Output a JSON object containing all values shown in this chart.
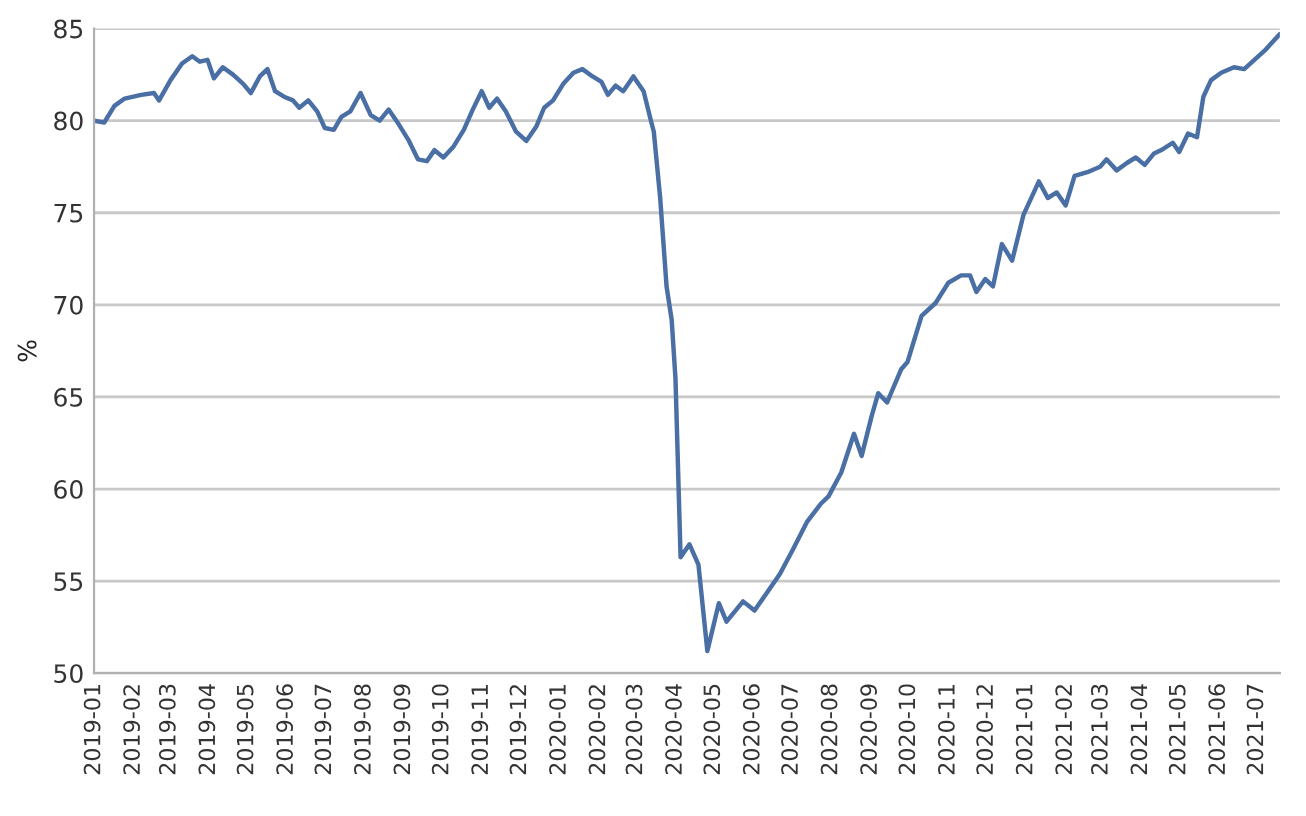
{
  "chart_data": {
    "type": "line",
    "ylabel": "%",
    "xlim": [
      "2019-01-01",
      "2021-07-19"
    ],
    "ylim": [
      50,
      85
    ],
    "yticks": [
      50,
      55,
      60,
      65,
      70,
      75,
      80,
      85
    ],
    "xticks": [
      "2019-01",
      "2019-02",
      "2019-03",
      "2019-04",
      "2019-05",
      "2019-06",
      "2019-07",
      "2019-08",
      "2019-09",
      "2019-10",
      "2019-11",
      "2019-12",
      "2020-01",
      "2020-02",
      "2020-03",
      "2020-04",
      "2020-05",
      "2020-06",
      "2020-07",
      "2020-08",
      "2020-09",
      "2020-10",
      "2020-11",
      "2020-12",
      "2021-01",
      "2021-02",
      "2021-03",
      "2021-04",
      "2021-05",
      "2021-06",
      "2021-07"
    ],
    "grid": "y",
    "marker": "none",
    "line_style": "solid",
    "series": [
      {
        "color": "#4a6fa5",
        "x": [
          "2019-01-01",
          "2019-01-09",
          "2019-01-17",
          "2019-01-25",
          "2019-02-07",
          "2019-02-17",
          "2019-02-21",
          "2019-03-02",
          "2019-03-11",
          "2019-03-19",
          "2019-03-25",
          "2019-03-31",
          "2019-04-05",
          "2019-04-12",
          "2019-04-20",
          "2019-04-28",
          "2019-05-04",
          "2019-05-11",
          "2019-05-17",
          "2019-05-23",
          "2019-05-30",
          "2019-06-06",
          "2019-06-11",
          "2019-06-18",
          "2019-06-25",
          "2019-07-01",
          "2019-07-08",
          "2019-07-14",
          "2019-07-21",
          "2019-07-29",
          "2019-08-06",
          "2019-08-13",
          "2019-08-20",
          "2019-08-28",
          "2019-09-05",
          "2019-09-12",
          "2019-09-19",
          "2019-09-25",
          "2019-10-02",
          "2019-10-10",
          "2019-10-18",
          "2019-10-25",
          "2019-11-01",
          "2019-11-07",
          "2019-11-13",
          "2019-11-20",
          "2019-11-28",
          "2019-12-06",
          "2019-12-14",
          "2019-12-20",
          "2019-12-27",
          "2020-01-04",
          "2020-01-12",
          "2020-01-19",
          "2020-01-27",
          "2020-02-03",
          "2020-02-08",
          "2020-02-14",
          "2020-02-20",
          "2020-02-28",
          "2020-03-07",
          "2020-03-12",
          "2020-03-15",
          "2020-03-20",
          "2020-03-25",
          "2020-03-29",
          "2020-04-01",
          "2020-04-05",
          "2020-04-12",
          "2020-04-19",
          "2020-04-26",
          "2020-05-05",
          "2020-05-11",
          "2020-05-24",
          "2020-06-02",
          "2020-06-12",
          "2020-06-22",
          "2020-07-02",
          "2020-07-13",
          "2020-07-24",
          "2020-07-30",
          "2020-08-09",
          "2020-08-19",
          "2020-08-25",
          "2020-09-02",
          "2020-09-07",
          "2020-09-14",
          "2020-09-17",
          "2020-09-25",
          "2020-09-30",
          "2020-10-11",
          "2020-10-22",
          "2020-11-01",
          "2020-11-11",
          "2020-11-18",
          "2020-11-23",
          "2020-11-30",
          "2020-12-06",
          "2020-12-13",
          "2020-12-21",
          "2020-12-30",
          "2021-01-11",
          "2021-01-18",
          "2021-01-25",
          "2021-02-01",
          "2021-02-08",
          "2021-02-18",
          "2021-02-28",
          "2021-03-05",
          "2021-03-13",
          "2021-03-21",
          "2021-03-28",
          "2021-04-04",
          "2021-04-11",
          "2021-04-17",
          "2021-04-26",
          "2021-05-01",
          "2021-05-08",
          "2021-05-15",
          "2021-05-20",
          "2021-05-26",
          "2021-06-03",
          "2021-06-13",
          "2021-06-21",
          "2021-06-29",
          "2021-07-07",
          "2021-07-19"
        ],
        "values": [
          80.0,
          79.9,
          80.8,
          81.2,
          81.4,
          81.5,
          81.1,
          82.2,
          83.1,
          83.5,
          83.2,
          83.3,
          82.3,
          82.9,
          82.5,
          82.0,
          81.5,
          82.4,
          82.8,
          81.6,
          81.3,
          81.1,
          80.7,
          81.1,
          80.5,
          79.6,
          79.5,
          80.2,
          80.5,
          81.5,
          80.3,
          80.0,
          80.6,
          79.8,
          78.9,
          77.9,
          77.8,
          78.4,
          78.0,
          78.6,
          79.5,
          80.6,
          81.6,
          80.7,
          81.2,
          80.5,
          79.4,
          78.9,
          79.7,
          80.7,
          81.1,
          82.0,
          82.6,
          82.8,
          82.4,
          82.1,
          81.4,
          81.9,
          81.6,
          82.4,
          81.6,
          80.2,
          79.4,
          75.8,
          71.0,
          69.2,
          66.0,
          56.3,
          57.0,
          55.9,
          51.2,
          53.8,
          52.8,
          53.9,
          53.4,
          54.4,
          55.4,
          56.7,
          58.2,
          59.2,
          59.6,
          60.9,
          63.0,
          61.8,
          64.0,
          65.2,
          64.7,
          65.2,
          66.5,
          66.9,
          69.4,
          70.1,
          71.2,
          71.6,
          71.6,
          70.7,
          71.4,
          71.0,
          73.3,
          72.4,
          74.9,
          76.7,
          75.8,
          76.1,
          75.4,
          77.0,
          77.2,
          77.5,
          77.9,
          77.3,
          77.7,
          78.0,
          77.6,
          78.2,
          78.4,
          78.8,
          78.3,
          79.3,
          79.1,
          81.3,
          82.2,
          82.6,
          82.9,
          82.8,
          83.3,
          83.8,
          84.7
        ]
      }
    ]
  }
}
